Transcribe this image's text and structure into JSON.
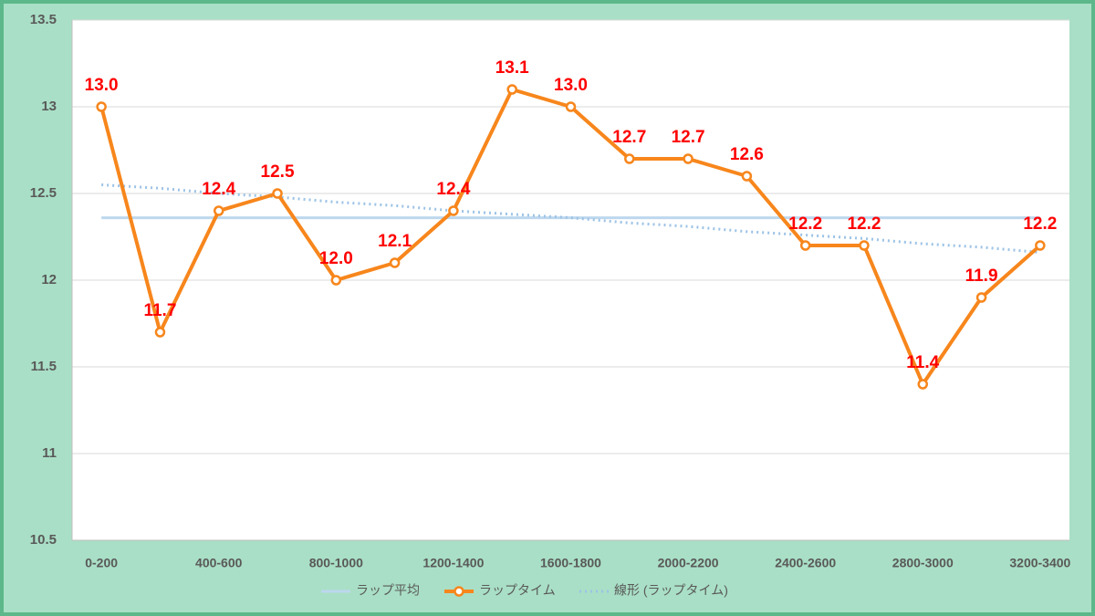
{
  "chart_data": {
    "type": "line",
    "categories": [
      "0-200",
      null,
      "400-600",
      null,
      "800-1000",
      null,
      "1200-1400",
      null,
      "1600-1800",
      null,
      "2000-2200",
      null,
      "2400-2600",
      null,
      "2800-3000",
      null,
      "3200-3400"
    ],
    "series": [
      {
        "name": "ラップ平均",
        "color": "#bdd7ee",
        "style": "solid",
        "markers": false,
        "values": [
          12.36,
          12.36,
          12.36,
          12.36,
          12.36,
          12.36,
          12.36,
          12.36,
          12.36,
          12.36,
          12.36,
          12.36,
          12.36,
          12.36,
          12.36,
          12.36,
          12.36
        ]
      },
      {
        "name": "ラップタイム",
        "color": "#f7861c",
        "style": "solid",
        "markers": true,
        "label_color": "#ff0000",
        "values": [
          13.0,
          11.7,
          12.4,
          12.5,
          12.0,
          12.1,
          12.4,
          13.1,
          13.0,
          12.7,
          12.7,
          12.6,
          12.2,
          12.2,
          11.4,
          11.9,
          12.2
        ],
        "value_labels": [
          "13.0",
          "11.7",
          "12.4",
          "12.5",
          "12.0",
          "12.1",
          "12.4",
          "13.1",
          "13.0",
          "12.7",
          "12.7",
          "12.6",
          "12.2",
          "12.2",
          "11.4",
          "11.9",
          "12.2"
        ]
      },
      {
        "name": "線形 (ラップタイム)",
        "color": "#9dc3e6",
        "style": "dotted",
        "markers": false,
        "values": [
          12.55,
          12.53,
          12.5,
          12.48,
          12.45,
          12.43,
          12.4,
          12.38,
          12.36,
          12.33,
          12.31,
          12.28,
          12.26,
          12.24,
          12.21,
          12.19,
          12.16
        ]
      }
    ],
    "ylim": [
      10.5,
      13.5
    ],
    "yticks": [
      10.5,
      11,
      11.5,
      12,
      12.5,
      13,
      13.5
    ],
    "grid": true,
    "legend": "bottom"
  }
}
